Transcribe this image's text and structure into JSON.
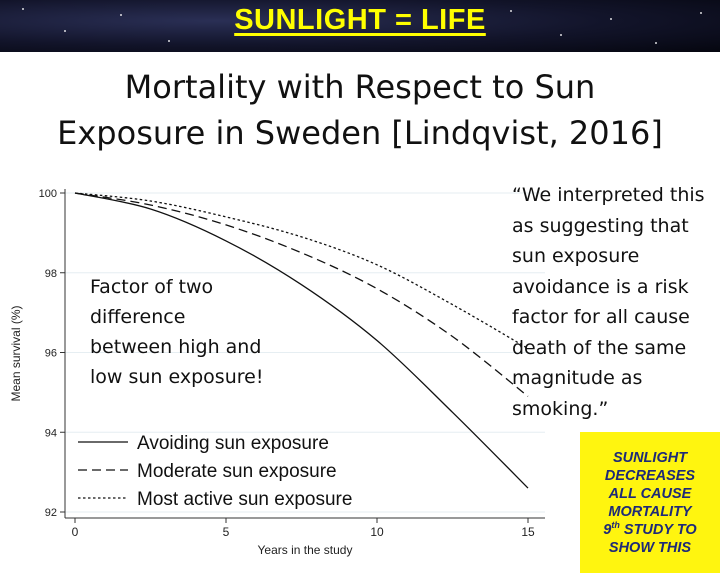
{
  "banner": {
    "title": "SUNLIGHT = LIFE"
  },
  "title_lines": [
    "Mortality with Respect to Sun",
    "Exposure in Sweden [Lindqvist, 2016]"
  ],
  "annotation_lines": [
    "Factor of two",
    "difference",
    "between high and",
    "low sun exposure!"
  ],
  "quote": "“We interpreted this\nas suggesting that\nsun exposure\navoidance is a risk\nfactor for all cause\ndeath of the same\nmagnitude as\nsmoking.”",
  "callout": {
    "lines": [
      "SUNLIGHT",
      "DECREASES",
      "ALL CAUSE",
      "MORTALITY"
    ],
    "ordinal_number": "9",
    "ordinal_suffix": "th",
    "ordinal_rest": " STUDY TO",
    "last_line": "SHOW THIS",
    "background": "#fff50f",
    "text_color": "#1e2a78"
  },
  "chart_data": {
    "type": "line",
    "title": "",
    "xlabel": "Years in the study",
    "ylabel": "Mean survival (%)",
    "xlim": [
      0,
      15
    ],
    "ylim": [
      92,
      100
    ],
    "xticks": [
      0,
      5,
      10,
      15
    ],
    "yticks": [
      92,
      94,
      96,
      98,
      100
    ],
    "grid": true,
    "legend_position": "bottom-left",
    "x": [
      0,
      2.5,
      5,
      7.5,
      10,
      12.5,
      15
    ],
    "series": [
      {
        "name": "Avoiding sun exposure",
        "dash": "solid",
        "values": [
          100,
          99.6,
          98.8,
          97.7,
          96.3,
          94.5,
          92.6
        ]
      },
      {
        "name": "Moderate sun exposure",
        "dash": "dashed",
        "values": [
          100,
          99.7,
          99.2,
          98.5,
          97.6,
          96.4,
          94.9
        ]
      },
      {
        "name": "Most active sun exposure",
        "dash": "dotted",
        "values": [
          100,
          99.8,
          99.4,
          98.9,
          98.2,
          97.2,
          96.1
        ]
      }
    ]
  }
}
